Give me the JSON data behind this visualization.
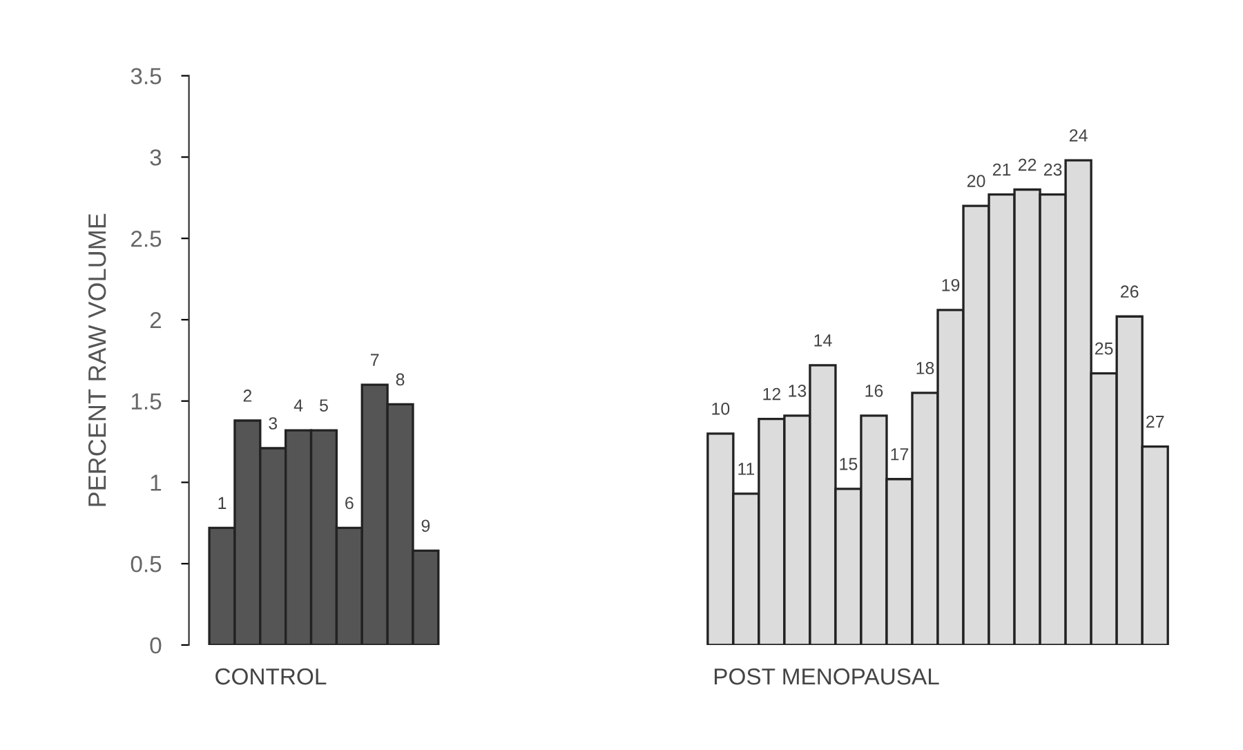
{
  "chart_data": [
    {
      "type": "bar",
      "ylabel": "PERCENT RAW VOLUME",
      "xlabel": "CONTROL",
      "categories": [
        null,
        null,
        null,
        null,
        null,
        null,
        null,
        null,
        null
      ],
      "values": [
        0.72,
        1.38,
        1.21,
        1.32,
        1.32,
        0.72,
        1.6,
        1.48,
        0.58
      ],
      "color": "#555555",
      "annotations": [
        "1",
        "2",
        "3",
        "4",
        "5",
        "6",
        "7",
        "8",
        "9"
      ],
      "ylim": [
        0,
        3.5
      ],
      "yticks": [
        0,
        0.5,
        1,
        1.5,
        2,
        2.5,
        3,
        3.5
      ],
      "grid": false
    },
    {
      "type": "bar",
      "xlabel": "POST MENOPAUSAL",
      "categories": [
        null,
        null,
        null,
        null,
        null,
        null,
        null,
        null,
        null,
        null,
        null,
        null,
        null,
        null,
        null,
        null,
        null,
        null
      ],
      "values": [
        1.3,
        0.93,
        1.39,
        1.41,
        1.72,
        0.96,
        1.41,
        1.02,
        1.55,
        2.06,
        2.7,
        2.77,
        2.8,
        2.77,
        2.98,
        1.67,
        2.02,
        1.22
      ],
      "color": "#dcdcdc",
      "annotations": [
        "10",
        "11",
        "12",
        "13",
        "14",
        "15",
        "16",
        "17",
        "18",
        "19",
        "20",
        "21",
        "22",
        "23",
        "24",
        "25",
        "26",
        "27"
      ],
      "ylim": [
        0,
        3.5
      ],
      "yticks": [
        0,
        0.5,
        1,
        1.5,
        2,
        2.5,
        3,
        3.5
      ],
      "tick_labels": false,
      "grid": false
    }
  ]
}
